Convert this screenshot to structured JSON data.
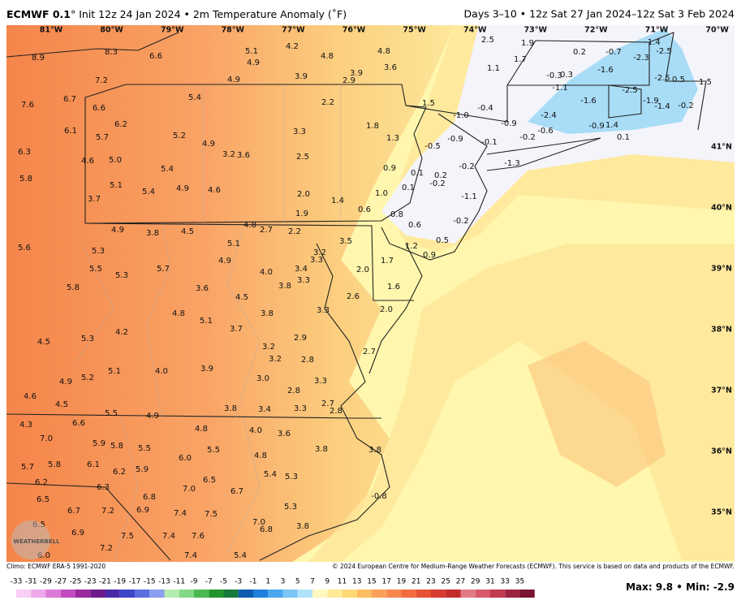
{
  "header": {
    "title_bold": "ECMWF 0.1",
    "title_rest": "° Init 12z 24 Jan 2024 • 2m Temperature Anomaly (˚F)",
    "valid": "Days 3–10 • 12z Sat 27 Jan 2024–12z Sat 3 Feb 2024"
  },
  "map": {
    "lon_labels": [
      "81°W",
      "80°W",
      "79°W",
      "78°W",
      "77°W",
      "76°W",
      "75°W",
      "74°W",
      "73°W",
      "72°W",
      "71°W",
      "70°W"
    ],
    "lat_labels": [
      "41°N",
      "40°N",
      "39°N",
      "38°N",
      "37°N",
      "36°N",
      "35°N"
    ],
    "values": [
      "8.9",
      "8.3",
      "6.6",
      "7.2",
      "5.1",
      "4.9",
      "4.2",
      "4.8",
      "4.8",
      "3.6",
      "2.5",
      "1.9",
      "1.7",
      "1.1",
      "0.2",
      "-0.7",
      "-2.3",
      "-1.4",
      "-2.5",
      "4.9",
      "3.9",
      "3.9",
      "2.9",
      "-1.6",
      "-0.3",
      "0.3",
      "-2.5",
      "0.5",
      "1.5",
      "7.6",
      "6.7",
      "6.6",
      "5.4",
      "2.2",
      "1.5",
      "-0.4",
      "-1.1",
      "-2.5",
      "-1.6",
      "-2.4",
      "-1.9",
      "-1.4",
      "-0.2",
      "6.1",
      "6.2",
      "5.7",
      "5.2",
      "4.9",
      "3.3",
      "1.8",
      "-1.0",
      "-0.9",
      "-0.6",
      "-0.9",
      "1.4",
      "-0.2",
      "6.3",
      "4.6",
      "5.0",
      "3.2",
      "3.6",
      "2.5",
      "1.3",
      "-0.5",
      "-0.9",
      "-0.1",
      "0.1",
      "5.4",
      "0.9",
      "0.1",
      "0.2",
      "-0.2",
      "5.8",
      "5.1",
      "5.4",
      "4.9",
      "4.6",
      "2.0",
      "1.0",
      "0.1",
      "-0.2",
      "-1.3",
      "-1.1",
      "3.7",
      "1.4",
      "0.6",
      "0.8",
      "1.9",
      "-0.2",
      "0.6",
      "4.9",
      "3.8",
      "4.5",
      "4.8",
      "2.7",
      "2.2",
      "5.6",
      "5.3",
      "5.1",
      "3.2",
      "3.5",
      "3.3",
      "1.2",
      "0.5",
      "0.9",
      "1.7",
      "5.5",
      "5.7",
      "5.3",
      "4.9",
      "4.0",
      "3.4",
      "3.3",
      "2.0",
      "5.8",
      "3.6",
      "4.5",
      "3.8",
      "1.6",
      "2.6",
      "4.8",
      "5.1",
      "3.8",
      "3.3",
      "2.0",
      "5.3",
      "4.2",
      "3.7",
      "2.9",
      "3.2",
      "3.2",
      "2.8",
      "2.7",
      "4.5",
      "5.1",
      "4.0",
      "3.9",
      "3.0",
      "3.3",
      "5.2",
      "4.9",
      "2.8",
      "3.8",
      "3.4",
      "3.3",
      "2.7",
      "2.8",
      "4.6",
      "4.5",
      "5.5",
      "4.9",
      "4.8",
      "4.0",
      "3.6",
      "4.3",
      "6.6",
      "7.0",
      "5.9",
      "5.8",
      "5.5",
      "5.5",
      "4.8",
      "3.8",
      "3.8",
      "6.0",
      "5.4",
      "5.3",
      "5.7",
      "5.8",
      "6.1",
      "6.2",
      "5.9",
      "6.5",
      "6.2",
      "6.3",
      "7.0",
      "6.7",
      "6.8",
      "6.5",
      "6.7",
      "7.2",
      "6.9",
      "7.4",
      "7.5",
      "5.3",
      "-0.8",
      "6.5",
      "7.0",
      "6.8",
      "3.8",
      "6.9",
      "7.2",
      "7.5",
      "7.4",
      "7.6",
      "6.0",
      "7.4",
      "5.4"
    ]
  },
  "footer": {
    "climo": "Climo: ECMWF ERA-5 1991-2020",
    "copyright": "© 2024 European Centre for Medium-Range Weather Forecasts (ECMWF). This service is based on data and products of the ECMWF.",
    "logo": "WEATHERBELL"
  },
  "colorbar": {
    "ticks": [
      -33,
      -31,
      -29,
      -27,
      -25,
      -23,
      -21,
      -19,
      -17,
      -15,
      -13,
      -11,
      -9,
      -7,
      -5,
      -3,
      -1,
      1,
      3,
      5,
      7,
      9,
      11,
      13,
      15,
      17,
      19,
      21,
      23,
      25,
      27,
      29,
      31,
      33,
      35
    ]
  },
  "stats": {
    "max_label": "Max:",
    "max": 9.8,
    "separator": "•",
    "min_label": "Min:",
    "min": -2.9
  }
}
